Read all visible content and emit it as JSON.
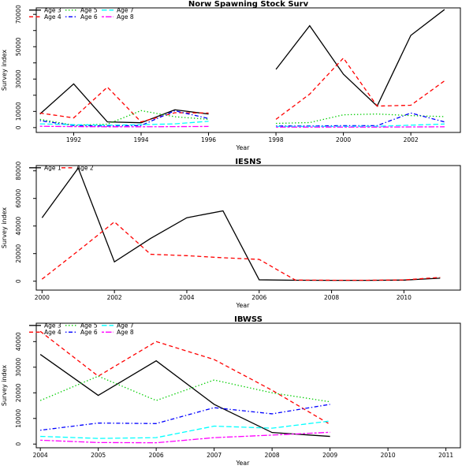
{
  "figure": {
    "background": "#ffffff",
    "foreground": "#000000"
  },
  "palette": {
    "black": "#000000",
    "red": "#FF0000",
    "green": "#00CD00",
    "blue": "#0000FF",
    "cyan": "#00FFFF",
    "magenta": "#FF00FF"
  },
  "chart_data": [
    {
      "type": "line",
      "title": "Norw Spawning Stock Surv",
      "xlabel": "Year",
      "ylabel": "Survey index",
      "grid": false,
      "legend_position": "top-left",
      "legend_ncol": 3,
      "x": [
        1991,
        1992,
        1993,
        1994,
        1995,
        1996,
        1997,
        1998,
        1999,
        2000,
        2001,
        2002,
        2003
      ],
      "xticks": [
        1992,
        1994,
        1996,
        1998,
        2000,
        2002
      ],
      "xtick_labels": [
        "1992",
        "1994",
        "1996",
        "1998",
        "2000",
        "2002"
      ],
      "xlim": [
        1990.89,
        2003.47
      ],
      "yticks": [
        0,
        10000,
        20000,
        30000,
        40000,
        50000,
        60000,
        70000
      ],
      "ytick_labels": [
        "0",
        "10000",
        "",
        "30000",
        "",
        "50000",
        "",
        "70000"
      ],
      "ylim": [
        -3000,
        74000
      ],
      "series": [
        {
          "name": "Age 3",
          "color": "#000000",
          "linetype": "solid",
          "values": [
            8400,
            27000,
            3500,
            3000,
            11000,
            8400,
            null,
            36000,
            63000,
            33000,
            13300,
            57000,
            73000
          ]
        },
        {
          "name": "Age 4",
          "color": "#FF0000",
          "linetype": "dashed",
          "values": [
            9000,
            6000,
            25000,
            3500,
            9200,
            9000,
            null,
            5100,
            20700,
            43000,
            13300,
            13800,
            28900
          ]
        },
        {
          "name": "Age 5",
          "color": "#00CD00",
          "linetype": "dotted",
          "values": [
            5100,
            1500,
            2100,
            10500,
            6700,
            5100,
            null,
            2600,
            3100,
            7900,
            8400,
            7400,
            6800
          ]
        },
        {
          "name": "Age 6",
          "color": "#0000FF",
          "linetype": "dotdash",
          "values": [
            4300,
            1300,
            1000,
            1300,
            10400,
            5600,
            null,
            1000,
            1000,
            1200,
            1200,
            9000,
            3500
          ]
        },
        {
          "name": "Age 7",
          "color": "#00FFFF",
          "linetype": "longdash",
          "values": [
            2300,
            1800,
            1500,
            1800,
            2300,
            3900,
            null,
            700,
            700,
            700,
            800,
            1500,
            2200
          ]
        },
        {
          "name": "Age 8",
          "color": "#FF00FF",
          "linetype": "twodash",
          "values": [
            800,
            600,
            500,
            500,
            600,
            700,
            null,
            300,
            300,
            300,
            300,
            400,
            500
          ]
        }
      ]
    },
    {
      "type": "line",
      "title": "IESNS",
      "xlabel": "Year",
      "ylabel": "Survey index",
      "grid": false,
      "legend_position": "top-left",
      "legend_ncol": 2,
      "x": [
        2000,
        2001,
        2002,
        2003,
        2004,
        2005,
        2006,
        2007,
        2008,
        2009,
        2010,
        2011
      ],
      "xticks": [
        2000,
        2002,
        2004,
        2006,
        2008,
        2010
      ],
      "xtick_labels": [
        "2000",
        "2002",
        "2004",
        "2006",
        "2008",
        "2010"
      ],
      "xlim": [
        1999.84,
        2011.56
      ],
      "yticks": [
        0,
        20000,
        40000,
        60000,
        80000
      ],
      "ytick_labels": [
        "0",
        "20000",
        "40000",
        "60000",
        "80000"
      ],
      "ylim": [
        -6460,
        83830
      ],
      "series": [
        {
          "name": "Age 1",
          "color": "#000000",
          "linetype": "solid",
          "values": [
            46000,
            82000,
            14000,
            31000,
            46000,
            51000,
            1000,
            700,
            600,
            600,
            800,
            2200
          ]
        },
        {
          "name": "Age 2",
          "color": "#FF0000",
          "linetype": "dashed",
          "values": [
            1500,
            22000,
            43000,
            19500,
            18500,
            17000,
            15800,
            800,
            700,
            700,
            900,
            2800
          ]
        }
      ]
    },
    {
      "type": "line",
      "title": "IBWSS",
      "xlabel": "Year",
      "ylabel": "Survey index",
      "grid": false,
      "legend_position": "top-left",
      "legend_ncol": 3,
      "x": [
        2004,
        2005,
        2006,
        2007,
        2008,
        2009
      ],
      "xticks": [
        2004,
        2005,
        2006,
        2007,
        2008,
        2009,
        2010,
        2011
      ],
      "xtick_labels": [
        "2004",
        "2005",
        "2006",
        "2007",
        "2008",
        "2009",
        "2010",
        "2011"
      ],
      "xlim": [
        2003.93,
        2011.25
      ],
      "yticks": [
        0,
        10000,
        20000,
        30000,
        40000
      ],
      "ytick_labels": [
        "0",
        "10000",
        "20000",
        "30000",
        "40000"
      ],
      "ylim": [
        -1450,
        47170
      ],
      "series": [
        {
          "name": "Age 3",
          "color": "#000000",
          "linetype": "solid",
          "values": [
            35000,
            19000,
            32500,
            15500,
            4500,
            3000
          ]
        },
        {
          "name": "Age 4",
          "color": "#FF0000",
          "linetype": "dashed",
          "values": [
            44000,
            26500,
            40000,
            33000,
            21000,
            7700
          ]
        },
        {
          "name": "Age 5",
          "color": "#00CD00",
          "linetype": "dotted",
          "values": [
            17000,
            26500,
            17000,
            25000,
            20000,
            16500
          ]
        },
        {
          "name": "Age 6",
          "color": "#0000FF",
          "linetype": "dotdash",
          "values": [
            5400,
            8200,
            8000,
            14200,
            11800,
            15500
          ]
        },
        {
          "name": "Age 7",
          "color": "#00FFFF",
          "linetype": "longdash",
          "values": [
            3000,
            2200,
            2500,
            7000,
            6200,
            9000
          ]
        },
        {
          "name": "Age 8",
          "color": "#FF00FF",
          "linetype": "twodash",
          "values": [
            1500,
            600,
            500,
            2500,
            3500,
            4600
          ]
        }
      ]
    }
  ]
}
